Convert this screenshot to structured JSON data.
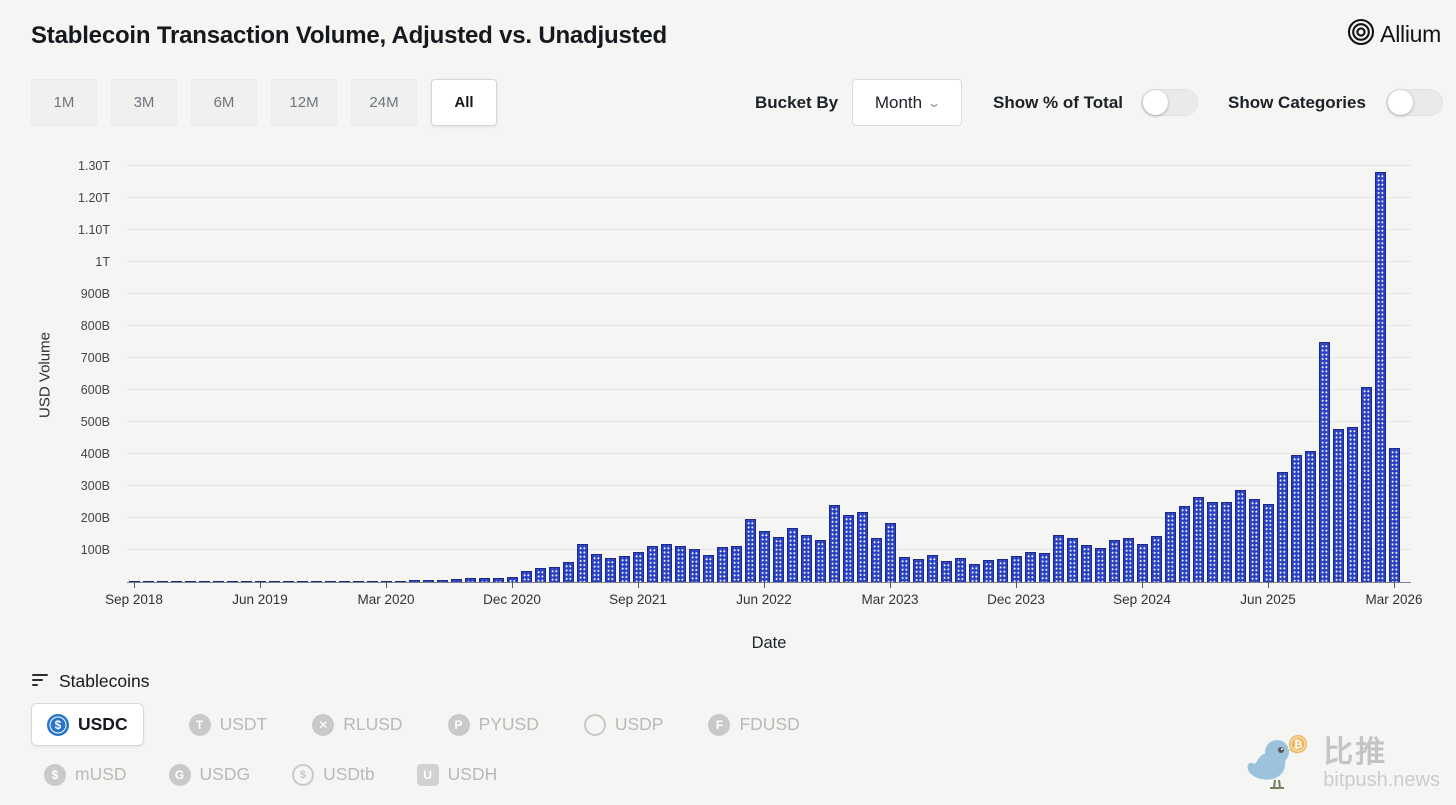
{
  "header": {
    "title": "Stablecoin Transaction Volume, Adjusted vs. Unadjusted",
    "brand": "Allium"
  },
  "controls": {
    "ranges": [
      {
        "label": "1M",
        "active": false
      },
      {
        "label": "3M",
        "active": false
      },
      {
        "label": "6M",
        "active": false
      },
      {
        "label": "12M",
        "active": false
      },
      {
        "label": "24M",
        "active": false
      },
      {
        "label": "All",
        "active": true
      }
    ],
    "bucket_by": {
      "label": "Bucket By",
      "value": "Month"
    },
    "show_pct": {
      "label": "Show % of Total",
      "on": false
    },
    "show_categories": {
      "label": "Show Categories",
      "on": false
    }
  },
  "chart_data": {
    "type": "bar",
    "title": "Stablecoin Transaction Volume, Adjusted vs. Unadjusted",
    "series_name": "USDC monthly USD volume",
    "xlabel": "Date",
    "ylabel": "USD Volume",
    "unit": "USD billions",
    "ylim": [
      0,
      1350
    ],
    "grid": true,
    "bar_color": "#2a41c2",
    "yticks": [
      {
        "label": "1.30T",
        "value": 1300
      },
      {
        "label": "1.20T",
        "value": 1200
      },
      {
        "label": "1.10T",
        "value": 1100
      },
      {
        "label": "1T",
        "value": 1000
      },
      {
        "label": "900B",
        "value": 900
      },
      {
        "label": "800B",
        "value": 800
      },
      {
        "label": "700B",
        "value": 700
      },
      {
        "label": "600B",
        "value": 600
      },
      {
        "label": "500B",
        "value": 500
      },
      {
        "label": "400B",
        "value": 400
      },
      {
        "label": "300B",
        "value": 300
      },
      {
        "label": "200B",
        "value": 200
      },
      {
        "label": "100B",
        "value": 100
      }
    ],
    "x_tick_every": 9,
    "categories": [
      "Sep 2018",
      "Oct 2018",
      "Nov 2018",
      "Dec 2018",
      "Jan 2019",
      "Feb 2019",
      "Mar 2019",
      "Apr 2019",
      "May 2019",
      "Jun 2019",
      "Jul 2019",
      "Aug 2019",
      "Sep 2019",
      "Oct 2019",
      "Nov 2019",
      "Dec 2019",
      "Jan 2020",
      "Feb 2020",
      "Mar 2020",
      "Apr 2020",
      "May 2020",
      "Jun 2020",
      "Jul 2020",
      "Aug 2020",
      "Sep 2020",
      "Oct 2020",
      "Nov 2020",
      "Dec 2020",
      "Jan 2021",
      "Feb 2021",
      "Mar 2021",
      "Apr 2021",
      "May 2021",
      "Jun 2021",
      "Jul 2021",
      "Aug 2021",
      "Sep 2021",
      "Oct 2021",
      "Nov 2021",
      "Dec 2021",
      "Jan 2022",
      "Feb 2022",
      "Mar 2022",
      "Apr 2022",
      "May 2022",
      "Jun 2022",
      "Jul 2022",
      "Aug 2022",
      "Sep 2022",
      "Oct 2022",
      "Nov 2022",
      "Dec 2022",
      "Jan 2023",
      "Feb 2023",
      "Mar 2023",
      "Apr 2023",
      "May 2023",
      "Jun 2023",
      "Jul 2023",
      "Aug 2023",
      "Sep 2023",
      "Oct 2023",
      "Nov 2023",
      "Dec 2023",
      "Jan 2024",
      "Feb 2024",
      "Mar 2024",
      "Apr 2024",
      "May 2024",
      "Jun 2024",
      "Jul 2024",
      "Aug 2024",
      "Sep 2024",
      "Oct 2024",
      "Nov 2024",
      "Dec 2024",
      "Jan 2025",
      "Feb 2025",
      "Mar 2025",
      "Apr 2025",
      "May 2025",
      "Jun 2025",
      "Jul 2025",
      "Aug 2025",
      "Sep 2025",
      "Oct 2025",
      "Nov 2025",
      "Dec 2025",
      "Jan 2026",
      "Feb 2026",
      "Mar 2026"
    ],
    "values": [
      0.2,
      0.3,
      0.4,
      0.5,
      0.5,
      0.6,
      0.8,
      1,
      1,
      1,
      1.2,
      1.2,
      1.5,
      1.5,
      1.8,
      2,
      2.5,
      3,
      4,
      4,
      5,
      6,
      7,
      9,
      11,
      12,
      12,
      15,
      34,
      45,
      46,
      64,
      119,
      86,
      75,
      80,
      95,
      113,
      118,
      111,
      104,
      85,
      108,
      114,
      196,
      158,
      141,
      168,
      146,
      131,
      241,
      209,
      218,
      137,
      184,
      79,
      71,
      85,
      66,
      74,
      57,
      69,
      72,
      81,
      94,
      91,
      147,
      138,
      116,
      106,
      131,
      138,
      119,
      144,
      219,
      238,
      265,
      251,
      250,
      288,
      259,
      244,
      345,
      397,
      410,
      750,
      478,
      485,
      610,
      1280,
      420
    ]
  },
  "legend": {
    "heading": "Stablecoins",
    "rows": [
      [
        {
          "label": "USDC",
          "active": true,
          "icon": {
            "name": "usdc-icon",
            "glyph": "$",
            "style": "usdc"
          }
        },
        {
          "label": "USDT",
          "active": false,
          "icon": {
            "name": "usdt-icon",
            "glyph": "T",
            "style": "fill"
          }
        },
        {
          "label": "RLUSD",
          "active": false,
          "icon": {
            "name": "rlusd-icon",
            "glyph": "✕",
            "style": "fill"
          }
        },
        {
          "label": "PYUSD",
          "active": false,
          "icon": {
            "name": "pyusd-icon",
            "glyph": "P",
            "style": "fill"
          }
        },
        {
          "label": "USDP",
          "active": false,
          "icon": {
            "name": "usdp-icon",
            "glyph": "",
            "style": "ring"
          }
        },
        {
          "label": "FDUSD",
          "active": false,
          "icon": {
            "name": "fdusd-icon",
            "glyph": "F",
            "style": "fill"
          }
        }
      ],
      [
        {
          "label": "mUSD",
          "active": false,
          "icon": {
            "name": "musd-icon",
            "glyph": "$",
            "style": "fill"
          }
        },
        {
          "label": "USDG",
          "active": false,
          "icon": {
            "name": "usdg-icon",
            "glyph": "G",
            "style": "fill"
          }
        },
        {
          "label": "USDtb",
          "active": false,
          "icon": {
            "name": "usdtb-icon",
            "glyph": "$",
            "style": "ring"
          }
        },
        {
          "label": "USDH",
          "active": false,
          "icon": {
            "name": "usdh-icon",
            "glyph": "U",
            "style": "square"
          }
        }
      ]
    ]
  },
  "watermark": {
    "cn": "比推",
    "domain": "bitpush.news"
  }
}
